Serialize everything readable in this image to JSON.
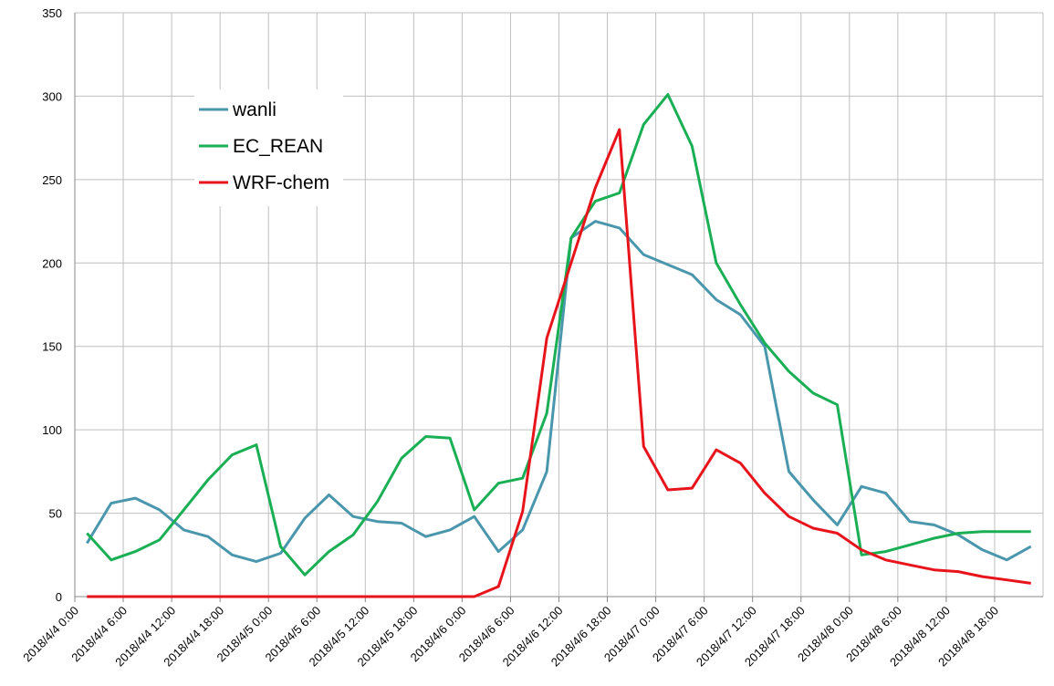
{
  "chart_data": {
    "type": "line",
    "categories": [
      "2018/4/4 0:00",
      null,
      "2018/4/4 6:00",
      null,
      "2018/4/4 12:00",
      null,
      "2018/4/4 18:00",
      null,
      "2018/4/5 0:00",
      null,
      "2018/4/5 6:00",
      null,
      "2018/4/5 12:00",
      null,
      "2018/4/5 18:00",
      null,
      "2018/4/6 0:00",
      null,
      "2018/4/6 6:00",
      null,
      "2018/4/6 12:00",
      null,
      "2018/4/6 18:00",
      null,
      "2018/4/7 0:00",
      null,
      "2018/4/7 6:00",
      null,
      "2018/4/7 12:00",
      null,
      "2018/4/7 18:00",
      null,
      "2018/4/8 0:00",
      null,
      "2018/4/8 6:00",
      null,
      "2018/4/8 12:00",
      null,
      "2018/4/8 18:00",
      null
    ],
    "series": [
      {
        "name": "wanli",
        "color": "#4a97ad",
        "values": [
          32,
          56,
          59,
          52,
          40,
          36,
          25,
          21,
          26,
          47,
          61,
          48,
          45,
          44,
          36,
          40,
          48,
          27,
          40,
          75,
          215,
          225,
          221,
          205,
          199,
          193,
          178,
          169,
          150,
          75,
          58,
          43,
          66,
          62,
          45,
          43,
          37,
          28,
          22,
          30
        ]
      },
      {
        "name": "EC_REAN",
        "color": "#1aaf54",
        "values": [
          38,
          22,
          27,
          34,
          52,
          70,
          85,
          91,
          30,
          13,
          27,
          37,
          57,
          83,
          96,
          95,
          52,
          68,
          71,
          110,
          215,
          237,
          242,
          283,
          301,
          270,
          200,
          175,
          152,
          135,
          122,
          115,
          25,
          27,
          31,
          35,
          38,
          39,
          39,
          39
        ]
      },
      {
        "name": "WRF-chem",
        "color": "#e8141c",
        "values": [
          0,
          0,
          0,
          0,
          0,
          0,
          0,
          0,
          0,
          0,
          0,
          0,
          0,
          0,
          0,
          0,
          0,
          6,
          51,
          155,
          200,
          245,
          280,
          90,
          64,
          65,
          88,
          80,
          62,
          48,
          41,
          38,
          28,
          22,
          19,
          16,
          15,
          12,
          10,
          8
        ]
      }
    ],
    "ylim": [
      0,
      350
    ],
    "yticks": [
      0,
      50,
      100,
      150,
      200,
      250,
      300,
      350
    ],
    "grid": true
  }
}
